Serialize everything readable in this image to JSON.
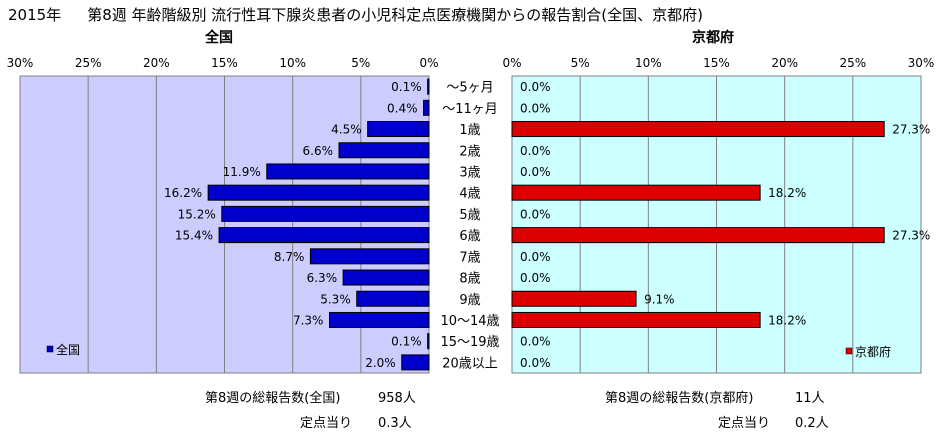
{
  "header": {
    "year": "2015年",
    "title": "第8週 年齢階級別 流行性耳下腺炎患者の小児科定点医療機関からの報告割合(全国、京都府)"
  },
  "colors": {
    "plot_bg_left": "#ccccff",
    "plot_bg_right": "#ccffff",
    "national_bar": "#0000cc",
    "kyoto_bar": "#dd0000"
  },
  "chart_data": [
    {
      "type": "bar",
      "orientation": "horizontal",
      "direction": "right-to-left",
      "title": "全国",
      "x_ticks": [
        "30%",
        "25%",
        "20%",
        "15%",
        "10%",
        "5%",
        "0%"
      ],
      "xlim": [
        0,
        30
      ],
      "grid": true,
      "legend": "全国",
      "legend_position": "bottom-left",
      "categories": [
        "～5ヶ月",
        "～11ヶ月",
        "1歳",
        "2歳",
        "3歳",
        "4歳",
        "5歳",
        "6歳",
        "7歳",
        "8歳",
        "9歳",
        "10～14歳",
        "15～19歳",
        "20歳以上"
      ],
      "values": [
        0.1,
        0.4,
        4.5,
        6.6,
        11.9,
        16.2,
        15.2,
        15.4,
        8.7,
        6.3,
        5.3,
        7.3,
        0.1,
        2.0
      ],
      "labels": [
        "0.1%",
        "0.4%",
        "4.5%",
        "6.6%",
        "11.9%",
        "16.2%",
        "15.2%",
        "15.4%",
        "8.7%",
        "6.3%",
        "5.3%",
        "7.3%",
        "0.1%",
        "2.0%"
      ]
    },
    {
      "type": "bar",
      "orientation": "horizontal",
      "title": "京都府",
      "x_ticks": [
        "0%",
        "5%",
        "10%",
        "15%",
        "20%",
        "25%",
        "30%"
      ],
      "xlim": [
        0,
        30
      ],
      "grid": true,
      "legend": "京都府",
      "legend_position": "bottom-right",
      "categories": [
        "～5ヶ月",
        "～11ヶ月",
        "1歳",
        "2歳",
        "3歳",
        "4歳",
        "5歳",
        "6歳",
        "7歳",
        "8歳",
        "9歳",
        "10～14歳",
        "15～19歳",
        "20歳以上"
      ],
      "values": [
        0,
        0,
        27.3,
        0,
        0,
        18.2,
        0,
        27.3,
        0,
        0,
        9.1,
        18.2,
        0,
        0
      ],
      "labels": [
        "0.0%",
        "0.0%",
        "27.3%",
        "0.0%",
        "0.0%",
        "18.2%",
        "0.0%",
        "27.3%",
        "0.0%",
        "0.0%",
        "9.1%",
        "18.2%",
        "0.0%",
        "0.0%"
      ]
    }
  ],
  "footer": {
    "national_total_label": "第8週の総報告数(全国)",
    "national_total_value": "958人",
    "national_per_label": "定点当り",
    "national_per_value": "0.3人",
    "kyoto_total_label": "第8週の総報告数(京都府)",
    "kyoto_total_value": "11人",
    "kyoto_per_label": "定点当り",
    "kyoto_per_value": "0.2人"
  }
}
